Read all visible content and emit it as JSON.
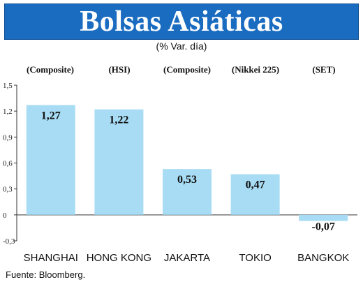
{
  "header": {
    "title": "Bolsas Asiáticas",
    "subtitle": "(% Var. día)"
  },
  "index_notes": [
    "(Composite)",
    "(HSI)",
    "(Composite)",
    "(Nikkei 225)",
    "(SET)"
  ],
  "source": "Fuente: Bloomberg.",
  "colors": {
    "title_bg": "#1a6cc0",
    "bar": "#a8dcf4",
    "axis": "#333333"
  },
  "chart_data": {
    "type": "bar",
    "title": "Bolsas Asiáticas",
    "subtitle": "(% Var. día)",
    "categories": [
      "SHANGHAI",
      "HONG KONG",
      "JAKARTA",
      "TOKIO",
      "BANGKOK"
    ],
    "values": [
      1.27,
      1.22,
      0.53,
      0.47,
      -0.07
    ],
    "value_labels": [
      "1,27",
      "1,22",
      "0,53",
      "0,47",
      "-0,07"
    ],
    "ylim": [
      -0.3,
      1.5
    ],
    "yticks": [
      -0.3,
      0,
      0.3,
      0.6,
      0.9,
      1.2,
      1.5
    ],
    "ytick_labels": [
      "-0,3",
      "0",
      "0,3",
      "0,6",
      "0,9",
      "1,2",
      "1,5"
    ],
    "grid": false,
    "legend": "none"
  }
}
